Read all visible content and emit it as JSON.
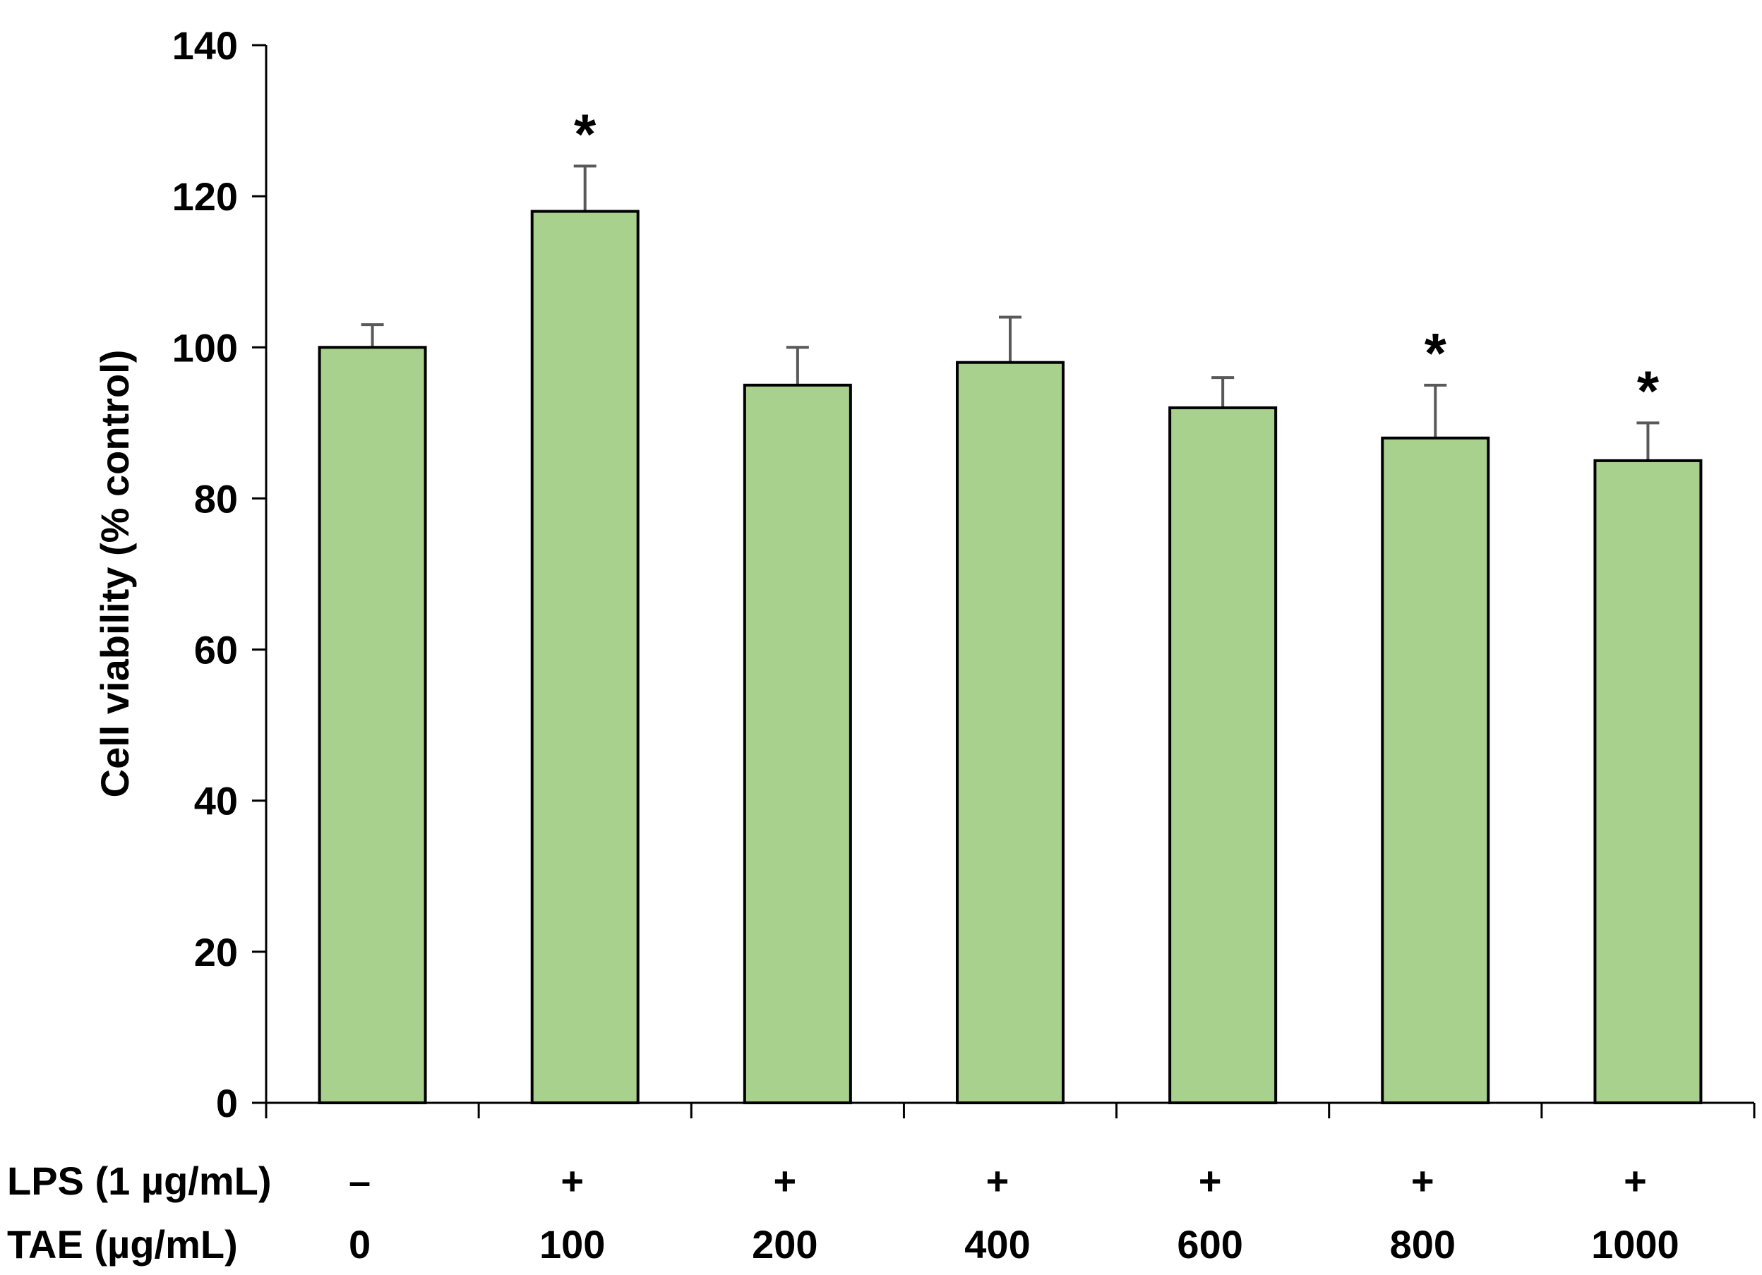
{
  "chart_data": {
    "type": "bar",
    "title": "",
    "ylabel": "Cell viability (% control)",
    "ylim": [
      0,
      140
    ],
    "yticks": [
      0,
      20,
      40,
      60,
      80,
      100,
      120,
      140
    ],
    "row_labels": [
      "LPS (1 µg/mL)",
      "TAE (µg/mL)"
    ],
    "categories": [
      {
        "lps": "–",
        "tae": "0"
      },
      {
        "lps": "+",
        "tae": "100"
      },
      {
        "lps": "+",
        "tae": "200"
      },
      {
        "lps": "+",
        "tae": "400"
      },
      {
        "lps": "+",
        "tae": "600"
      },
      {
        "lps": "+",
        "tae": "800"
      },
      {
        "lps": "+",
        "tae": "1000"
      }
    ],
    "values": [
      100,
      118,
      95,
      98,
      92,
      88,
      85
    ],
    "errors": [
      3,
      6,
      5,
      6,
      4,
      7,
      5
    ],
    "significance": [
      "",
      "*",
      "",
      "",
      "",
      "*",
      "*"
    ],
    "bar_color": "#a9d18e",
    "bar_edge_color": "#000000",
    "error_color": "#595959",
    "grid": false,
    "legend": "none"
  }
}
